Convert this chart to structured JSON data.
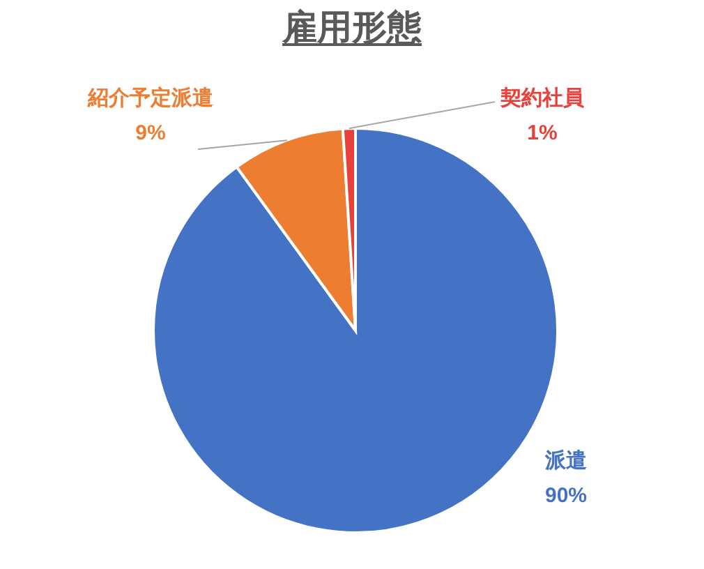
{
  "chart_data": {
    "type": "pie",
    "title": "雇用形態",
    "categories": [
      "派遣",
      "紹介予定派遣",
      "契約社員"
    ],
    "values": [
      90,
      9,
      1
    ],
    "colors": [
      "#4472c4",
      "#ed7d31",
      "#e8403a"
    ],
    "value_labels": [
      "90%",
      "9%",
      "1%"
    ]
  }
}
